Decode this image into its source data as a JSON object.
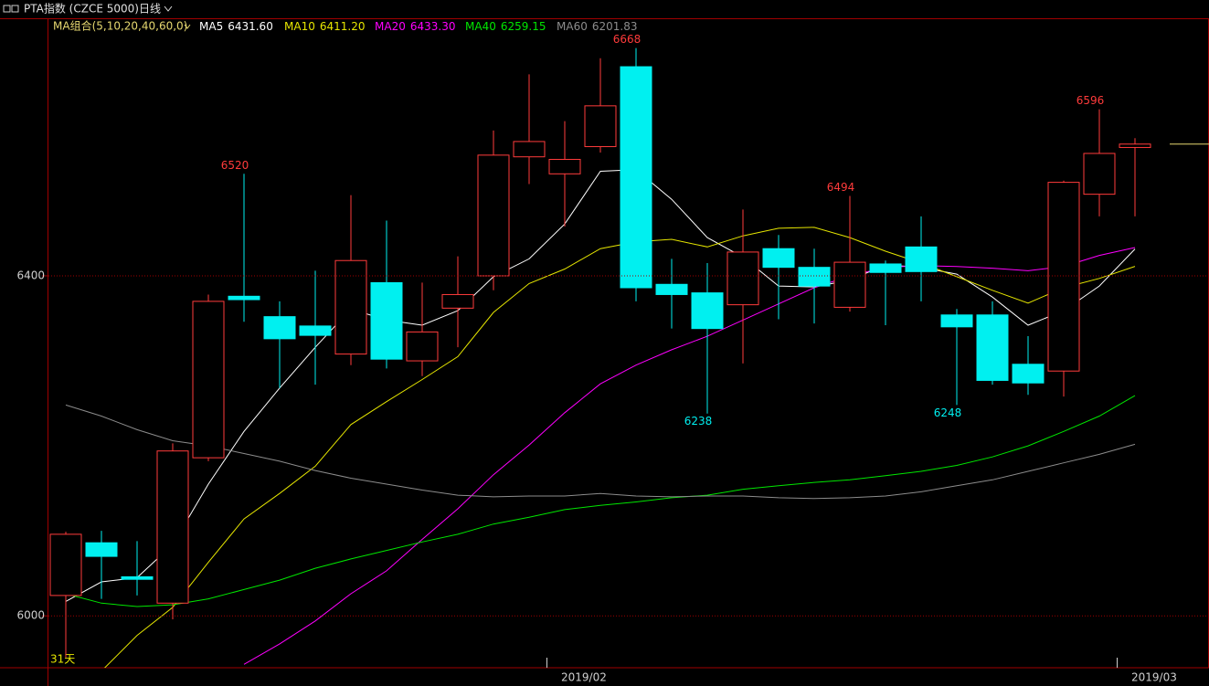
{
  "chart_data": {
    "type": "candlestick",
    "title": "PTA指数 (CZCE 5000)",
    "period": "日线",
    "ma_group": "MA组合(5,10,20,40,60,0)",
    "corner_label": "31天",
    "categories": [
      null,
      null,
      null,
      null,
      null,
      null,
      null,
      null,
      null,
      null,
      null,
      null,
      null,
      null,
      "2019/02",
      null,
      null,
      null,
      null,
      null,
      null,
      null,
      null,
      null,
      null,
      null,
      null,
      null,
      null,
      null,
      "2019/03"
    ],
    "open": [
      6024,
      6086,
      6046,
      6015,
      6186,
      6376,
      6352,
      6341,
      6308,
      6392,
      6300,
      6362,
      6400,
      6540,
      6520,
      6552,
      6646,
      6390,
      6380,
      6366,
      6432,
      6410,
      6363,
      6414,
      6434,
      6354,
      6354,
      6296,
      6288,
      6496,
      6551
    ],
    "close": [
      6096,
      6070,
      6043,
      6194,
      6370,
      6372,
      6326,
      6330,
      6418,
      6302,
      6334,
      6378,
      6542,
      6558,
      6537,
      6600,
      6386,
      6378,
      6338,
      6428,
      6410,
      6388,
      6416,
      6404,
      6405,
      6340,
      6277,
      6274,
      6510,
      6544,
      6555
    ],
    "high": [
      6099,
      6100,
      6088,
      6203,
      6378,
      6520,
      6370,
      6406,
      6495,
      6465,
      6392,
      6423,
      6571,
      6637,
      6582,
      6656,
      6668,
      6420,
      6415,
      6478,
      6448,
      6432,
      6494,
      6418,
      6470,
      6361,
      6370,
      6329,
      6512,
      6596,
      6562
    ],
    "low": [
      5951,
      6020,
      6024,
      5996,
      6182,
      6346,
      6268,
      6272,
      6295,
      6291,
      6282,
      6316,
      6383,
      6508,
      6458,
      6545,
      6370,
      6338,
      6238,
      6297,
      6349,
      6344,
      6358,
      6342,
      6370,
      6248,
      6272,
      6260,
      6258,
      6470,
      6470
    ],
    "up_color": "#ff3b3b",
    "down_color": "#00f0f0",
    "series": [
      {
        "name": "MA5",
        "color": "#ffffff",
        "legend_value": "6431.60",
        "values": [
          6017,
          6040,
          6045,
          6084,
          6155,
          6217,
          6268,
          6316,
          6361,
          6348,
          6342,
          6359,
          6399,
          6420,
          6461,
          6523,
          6525,
          6490,
          6445,
          6422,
          6388,
          6387,
          6395,
          6413,
          6410,
          6402,
          6375,
          6342,
          6359,
          6388,
          6431.6
        ]
      },
      {
        "name": "MA10",
        "color": "#e6e600",
        "legend_value": "6411.20",
        "values": [
          null,
          5935,
          5977,
          6010,
          6063,
          6114,
          6144,
          6176,
          6225,
          6252,
          6278,
          6305,
          6357,
          6391,
          6408,
          6432,
          6440,
          6443,
          6434,
          6447,
          6456,
          6457,
          6445,
          6429,
          6415,
          6399,
          6383,
          6368,
          6386,
          6397,
          6411.2
        ]
      },
      {
        "name": "MA20",
        "color": "#ff00ff",
        "legend_value": "6433.30",
        "values": [
          null,
          null,
          null,
          null,
          null,
          5943,
          5967,
          5994,
          6026,
          6053,
          6090,
          6126,
          6166,
          6201,
          6239,
          6273,
          6295,
          6313,
          6329,
          6348,
          6367,
          6386,
          6400,
          6410,
          6412,
          6411,
          6409,
          6406,
          6411,
          6424,
          6433.3
        ]
      },
      {
        "name": "MA40",
        "color": "#00e600",
        "legend_value": "6259.15",
        "values": [
          6026,
          6015,
          6011,
          6013,
          6020,
          6031,
          6042,
          6056,
          6067,
          6077,
          6087,
          6096,
          6108,
          6116,
          6125,
          6130,
          6134,
          6139,
          6142,
          6149,
          6153,
          6157,
          6160,
          6165,
          6170,
          6177,
          6187,
          6200,
          6217,
          6235,
          6259.15
        ]
      },
      {
        "name": "MA60",
        "color": "#8c8c8c",
        "legend_value": "6201.83",
        "values": [
          6248,
          6235,
          6219,
          6206,
          6200,
          6191,
          6182,
          6171,
          6162,
          6155,
          6148,
          6142,
          6140,
          6141,
          6141,
          6144,
          6141,
          6140,
          6141,
          6141,
          6139,
          6138,
          6139,
          6141,
          6146,
          6153,
          6160,
          6170,
          6180,
          6190,
          6201.83
        ]
      }
    ],
    "ylim": [
      5939,
      6703
    ],
    "yticks": [
      6000,
      6400
    ],
    "grid": true
  }
}
